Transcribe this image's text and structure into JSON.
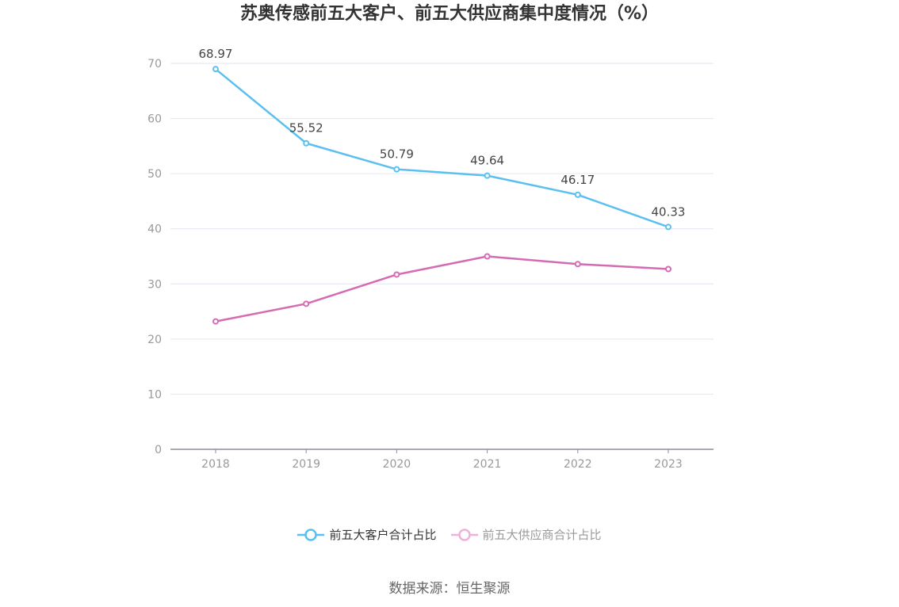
{
  "chart_data": {
    "type": "line",
    "title": "苏奥传感前五大客户、前五大供应商集中度情况（%）",
    "categories": [
      "2018",
      "2019",
      "2020",
      "2021",
      "2022",
      "2023"
    ],
    "ylim": [
      0,
      70
    ],
    "yticks": [
      0,
      10,
      20,
      30,
      40,
      50,
      60,
      70
    ],
    "grid": true,
    "legend_position": "bottom",
    "series": [
      {
        "name": "前五大客户合计占比",
        "values": [
          68.97,
          55.52,
          50.79,
          49.64,
          46.17,
          40.33
        ],
        "labels": [
          "68.97",
          "55.52",
          "50.79",
          "49.64",
          "46.17",
          "40.33"
        ],
        "color": "#5bc0f0"
      },
      {
        "name": "前五大供应商合计占比",
        "values": [
          23.2,
          26.4,
          31.7,
          35.0,
          33.6,
          32.7
        ],
        "color": "#d46bb3",
        "legend_color": "#eeb1d8"
      }
    ]
  },
  "source": "数据来源：恒生聚源"
}
